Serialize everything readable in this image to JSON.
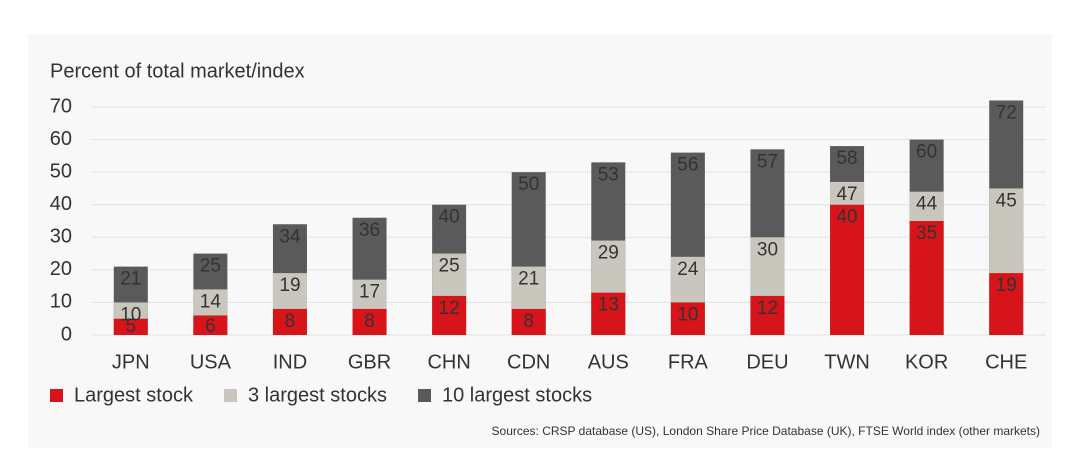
{
  "chart_data": {
    "type": "bar",
    "overlap": true,
    "y_axis_label": "Percent of total market/index",
    "categories": [
      "JPN",
      "USA",
      "IND",
      "GBR",
      "CHN",
      "CDN",
      "AUS",
      "FRA",
      "DEU",
      "TWN",
      "KOR",
      "CHE"
    ],
    "series": [
      {
        "name": "Largest stock",
        "color": "#d7141a",
        "values": [
          5,
          6,
          8,
          8,
          12,
          8,
          13,
          10,
          12,
          40,
          35,
          19
        ]
      },
      {
        "name": "3 largest stocks",
        "color": "#c9c7bd",
        "values": [
          10,
          14,
          19,
          17,
          25,
          21,
          29,
          24,
          30,
          47,
          44,
          45
        ]
      },
      {
        "name": "10 largest stocks",
        "color": "#5a5a5a",
        "values": [
          21,
          25,
          34,
          36,
          40,
          50,
          53,
          56,
          57,
          58,
          60,
          72
        ]
      }
    ],
    "ylim": [
      0,
      70
    ],
    "yticks": [
      0,
      10,
      20,
      30,
      40,
      50,
      60,
      70
    ],
    "grid": true,
    "source": "Sources: CRSP database (US), London Share Price Database (UK), FTSE World index (other markets)"
  }
}
